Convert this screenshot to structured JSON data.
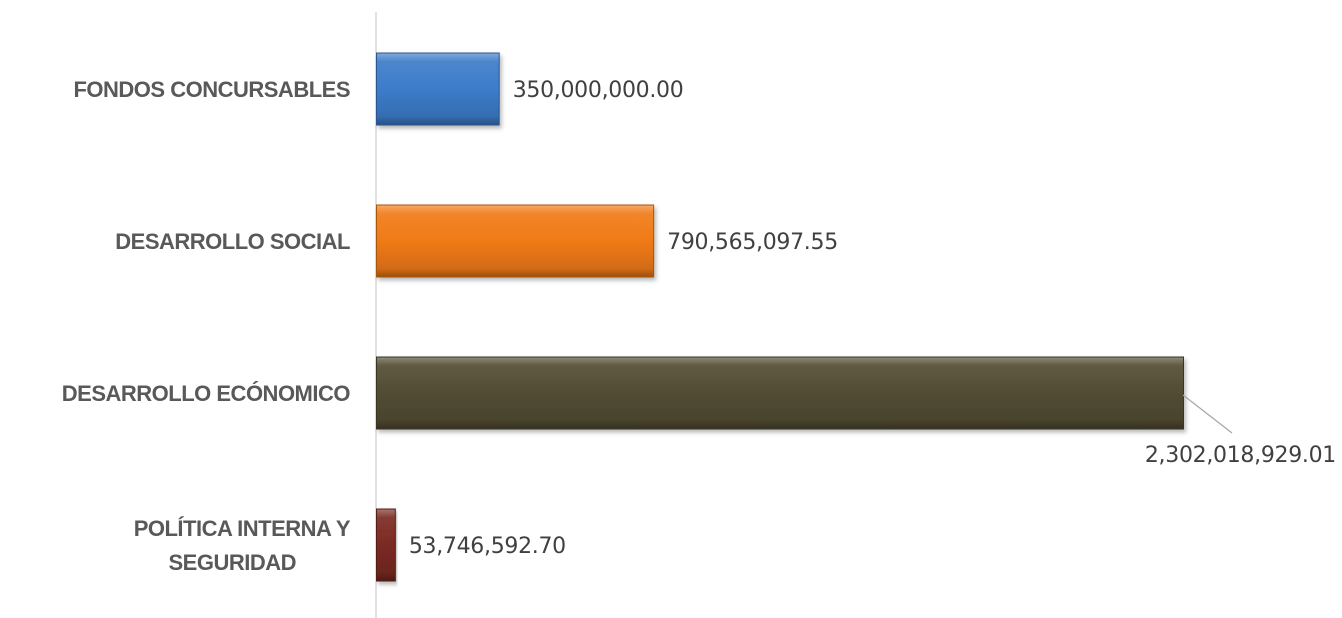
{
  "chart_data": {
    "type": "bar",
    "orientation": "horizontal",
    "categories": [
      "FONDOS CONCURSABLES",
      "DESARROLLO SOCIAL",
      "DESARROLLO ECÓNOMICO",
      "POLÍTICA INTERNA Y SEGURIDAD"
    ],
    "values": [
      350000000.0,
      790565097.55,
      2302018929.01,
      53746592.7
    ],
    "value_labels": [
      "350,000,000.00",
      "790,565,097.55",
      "2,302,018,929.01",
      "53,746,592.70"
    ],
    "colors": [
      "#3c7cc9",
      "#f07a17",
      "#524c33",
      "#7a2a22"
    ],
    "xlim": [
      0,
      2302018929.01
    ],
    "grid": false,
    "legend": "none"
  }
}
